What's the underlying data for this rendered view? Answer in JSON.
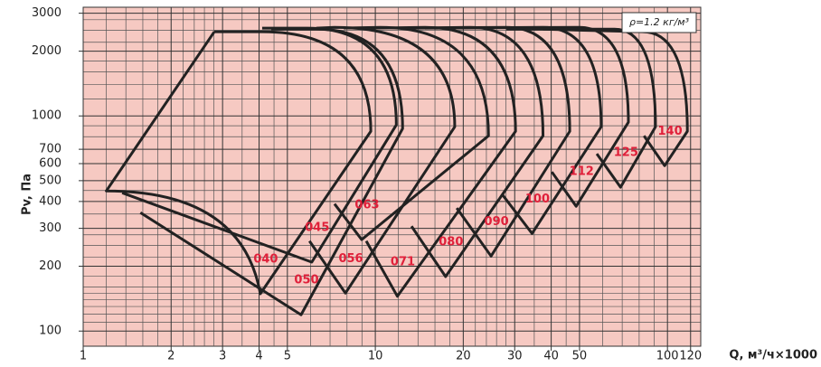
{
  "chart_data": {
    "type": "line",
    "x_label": "Q, м³/ч×1000",
    "y_label": "Pv, Па",
    "annotation": "ρ=1.2 кг/м³",
    "xscale": "log",
    "yscale": "log",
    "xlim": [
      1,
      130
    ],
    "ylim": [
      85,
      3200
    ],
    "xticks": [
      1,
      2,
      3,
      4,
      5,
      10,
      20,
      30,
      40,
      50,
      100,
      120
    ],
    "yticks": [
      100,
      200,
      300,
      400,
      500,
      600,
      700,
      1000,
      2000,
      3000
    ],
    "xgrid": [
      1.2,
      1.4,
      1.6,
      1.8,
      2.2,
      2.4,
      2.6,
      2.8,
      3.5,
      4.5,
      6,
      7,
      8,
      9,
      12,
      14,
      16,
      18,
      22,
      24,
      26,
      28,
      35,
      45,
      60,
      70,
      80,
      90
    ],
    "ygrid": [
      110,
      120,
      130,
      140,
      150,
      160,
      180,
      220,
      250,
      280,
      350,
      450,
      800,
      900,
      1200,
      1400,
      1600,
      1800,
      2200,
      2500,
      2800
    ],
    "background": "#f6c9c2",
    "color": "#222222",
    "label_color": "#e0203a",
    "series": [
      {
        "name": "040",
        "closed": true,
        "x": [
          1.2,
          4.04,
          9.65,
          4.1,
          2.81
        ],
        "values": [
          448,
          149,
          848,
          2460,
          2460
        ]
      },
      {
        "name": "045",
        "x": [
          1.36,
          6.06,
          11.8,
          5.85,
          4.1
        ],
        "values": [
          439,
          209,
          908,
          2560,
          2560
        ]
      },
      {
        "name": "050",
        "x": [
          1.57,
          5.57,
          12.4,
          6.28,
          4.4
        ],
        "values": [
          355,
          119,
          873,
          2530,
          2530
        ]
      },
      {
        "name": "056",
        "x": [
          5.95,
          7.9,
          18.7,
          7.25,
          6.28
        ],
        "values": [
          262,
          150,
          890,
          2580,
          2560
        ]
      },
      {
        "name": "063",
        "x": [
          7.25,
          8.98,
          24.4,
          10.4,
          7.8
        ],
        "values": [
          390,
          266,
          808,
          2580,
          2560
        ]
      },
      {
        "name": "071",
        "x": [
          9.31,
          11.9,
          30.2,
          14.8,
          9.65
        ],
        "values": [
          262,
          145,
          848,
          2580,
          2560
        ]
      },
      {
        "name": "080",
        "x": [
          13.3,
          17.4,
          37.5,
          21.1,
          13.3
        ],
        "values": [
          307,
          179,
          808,
          2580,
          2560
        ]
      },
      {
        "name": "090",
        "x": [
          19.0,
          24.9,
          46.3,
          28.1,
          13.8
        ],
        "values": [
          373,
          223,
          848,
          2580,
          2560
        ]
      },
      {
        "name": "100",
        "x": [
          27.2,
          34.4,
          59.3,
          37.5,
          14.8
        ],
        "values": [
          431,
          284,
          890,
          2580,
          2560
        ]
      },
      {
        "name": "112",
        "x": [
          40.2,
          48.7,
          73.5,
          49.8,
          15.9
        ],
        "values": [
          549,
          380,
          935,
          2580,
          2560
        ]
      },
      {
        "name": "125",
        "x": [
          57.3,
          69.1,
          91,
          65.9,
          28.1
        ],
        "values": [
          667,
          466,
          890,
          2530,
          2530
        ]
      },
      {
        "name": "140",
        "x": [
          83.1,
          97.8,
          117,
          82.2,
          37.5
        ],
        "values": [
          808,
          587,
          848,
          2460,
          2530
        ]
      }
    ]
  }
}
